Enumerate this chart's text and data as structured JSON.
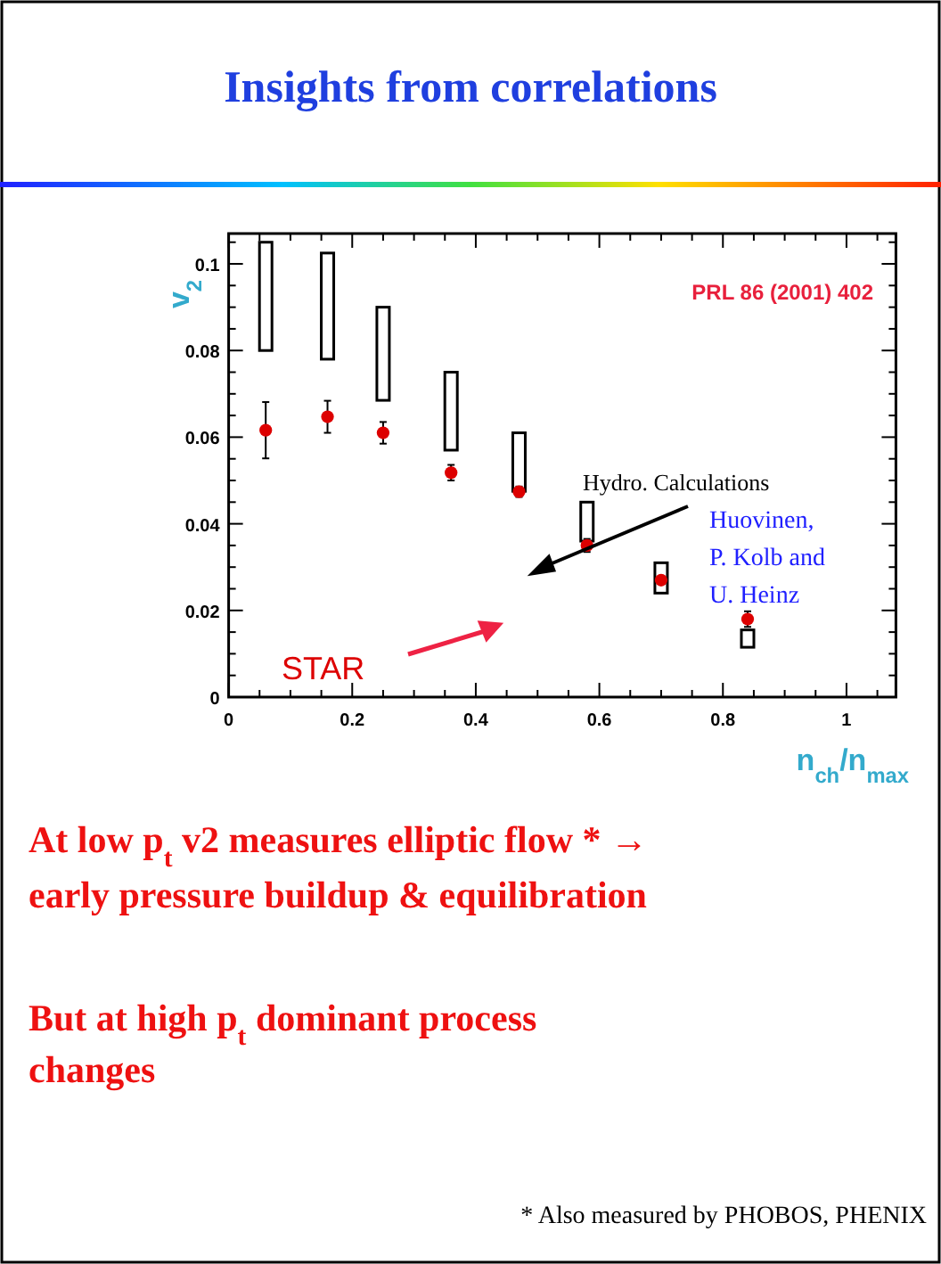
{
  "chart_data": {
    "type": "scatter",
    "title": "Insights from correlations",
    "xlabel": "n$_{ch}$/n$_{max}$",
    "ylabel": "v$_{2}$",
    "xlim": [
      0,
      1.08
    ],
    "ylim": [
      0,
      0.107
    ],
    "xticks": [
      0,
      0.2,
      0.4,
      0.6,
      0.8,
      1
    ],
    "yticks": [
      0,
      0.02,
      0.04,
      0.06,
      0.08,
      0.1
    ],
    "series": [
      {
        "name": "Hydro. Calculations",
        "type": "bar",
        "color": "#000000",
        "x": [
          0.06,
          0.16,
          0.25,
          0.36,
          0.47,
          0.58,
          0.7,
          0.84
        ],
        "base": [
          0.08,
          0.078,
          0.0685,
          0.057,
          0.0475,
          0.036,
          0.024,
          0.0115
        ],
        "values": [
          0.025,
          0.0245,
          0.0215,
          0.018,
          0.0135,
          0.009,
          0.007,
          0.004
        ]
      },
      {
        "name": "STAR",
        "color": "#dd0000",
        "marker": "circle",
        "x": [
          0.06,
          0.16,
          0.25,
          0.36,
          0.47,
          0.58,
          0.7,
          0.84
        ],
        "values": [
          0.0616,
          0.0647,
          0.061,
          0.0518,
          0.0474,
          0.035,
          0.027,
          0.018
        ],
        "errors": [
          0.0065,
          0.0037,
          0.0025,
          0.0018,
          0.0012,
          0.0015,
          null,
          0.0018
        ]
      }
    ],
    "annotations": [
      "PRL 86 (2001) 402",
      "Huovinen,\nP. Kolb and\nU. Heinz",
      "At low p$_{t}$ v2 measures elliptic flow * →\nearly pressure buildup & equilibration",
      "But at high p$_{t}$ dominant process\nchanges",
      "* Also measured by PHOBOS, PHENIX"
    ]
  }
}
